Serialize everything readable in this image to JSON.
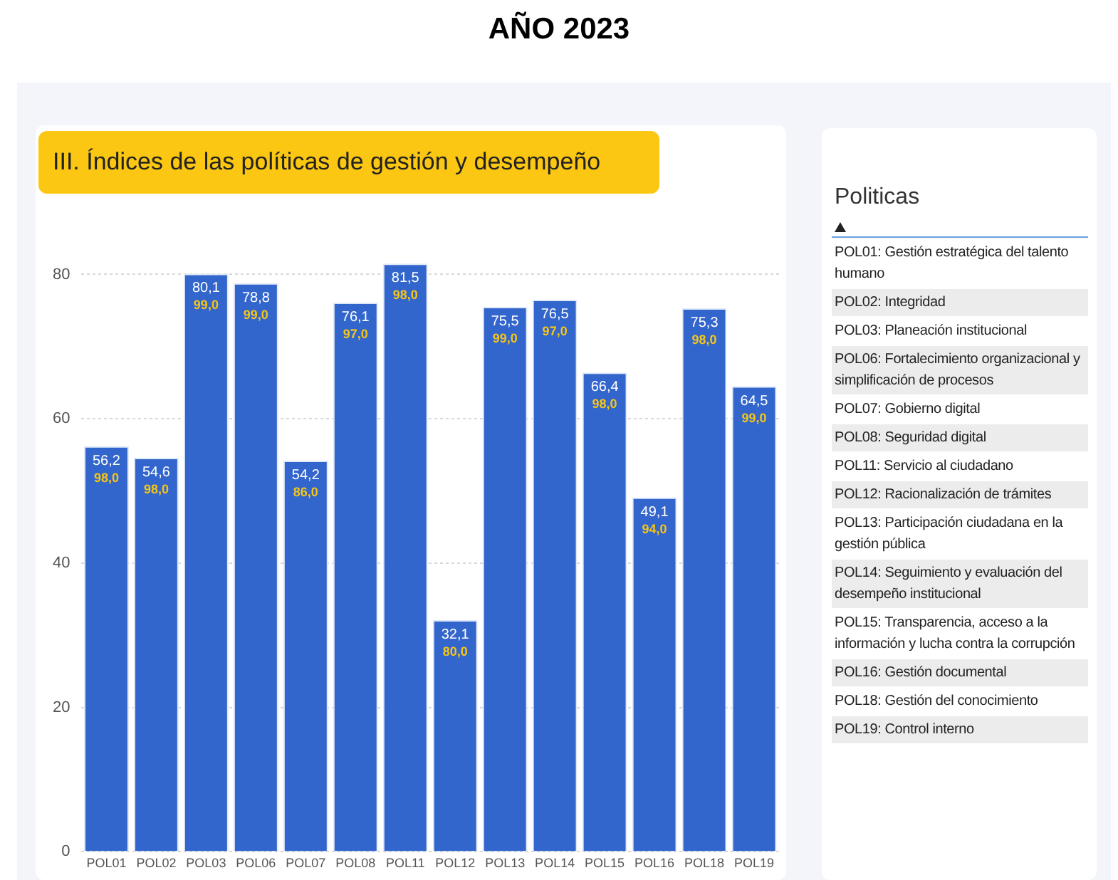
{
  "chart_data": [
    {
      "type": "bar",
      "title": "AÑO 2023",
      "subtitle": "III. Índices de las políticas de gestión y desempeño",
      "categories": [
        "POL01",
        "POL02",
        "POL03",
        "POL06",
        "POL07",
        "POL08",
        "POL11",
        "POL12",
        "POL13",
        "POL14",
        "POL15",
        "POL16",
        "POL18",
        "POL19"
      ],
      "values": [
        56.2,
        54.6,
        80.1,
        78.8,
        54.2,
        76.1,
        81.5,
        32.1,
        75.5,
        76.5,
        66.4,
        49.1,
        75.3,
        64.5
      ],
      "value_labels": [
        "56,2",
        "54,6",
        "80,1",
        "78,8",
        "54,2",
        "76,1",
        "81,5",
        "32,1",
        "75,5",
        "76,5",
        "66,4",
        "49,1",
        "75,3",
        "64,5"
      ],
      "color": "#3366cc",
      "ylim": [
        0,
        82
      ],
      "yticks": [
        0,
        20,
        40,
        60,
        80
      ],
      "grid": "y",
      "annotations": [
        {
          "text": "98,0",
          "x": "POL01",
          "y": 56.2
        },
        {
          "text": "98,0",
          "x": "POL02",
          "y": 54.6
        },
        {
          "text": "99,0",
          "x": "POL03",
          "y": 80.1
        },
        {
          "text": "99,0",
          "x": "POL06",
          "y": 78.8
        },
        {
          "text": "86,0",
          "x": "POL07",
          "y": 54.2
        },
        {
          "text": "97,0",
          "x": "POL08",
          "y": 76.1
        },
        {
          "text": "98,0",
          "x": "POL11",
          "y": 81.5
        },
        {
          "text": "80,0",
          "x": "POL12",
          "y": 32.1
        },
        {
          "text": "99,0",
          "x": "POL13",
          "y": 75.5
        },
        {
          "text": "97,0",
          "x": "POL14",
          "y": 76.5
        },
        {
          "text": "98,0",
          "x": "POL15",
          "y": 66.4
        },
        {
          "text": "94,0",
          "x": "POL16",
          "y": 49.1
        },
        {
          "text": "98,0",
          "x": "POL18",
          "y": 75.3
        },
        {
          "text": "99,0",
          "x": "POL19",
          "y": 64.5
        }
      ]
    },
    {
      "type": "other",
      "title": "Politicas",
      "annotations": [
        "POL01: Gestión estratégica del talento humano",
        "POL02: Integridad",
        "POL03: Planeación institucional",
        "POL06: Fortalecimiento organizacional y simplificación de procesos",
        "POL07: Gobierno digital",
        "POL08: Seguridad digital",
        "POL11: Servicio al ciudadano",
        "POL12: Racionalización de trámites",
        "POL13: Participación ciudadana en la gestión pública",
        "POL14: Seguimiento y evaluación del desempeño institucional",
        "POL15: Transparencia, acceso a la información y lucha contra la corrupción",
        "POL16: Gestión documental",
        "POL18: Gestión del conocimiento",
        "POL19: Control interno"
      ]
    }
  ]
}
